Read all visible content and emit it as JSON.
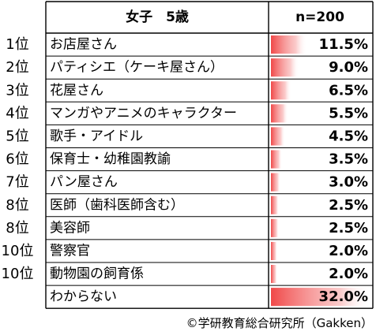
{
  "chart_data": {
    "type": "table",
    "header": {
      "category": "女子　5歳",
      "sample": "n=200"
    },
    "rows": [
      {
        "rank": "1位",
        "label": "お店屋さん",
        "value": 11.5,
        "display": "11.5%"
      },
      {
        "rank": "2位",
        "label": "パティシエ（ケーキ屋さん）",
        "value": 9.0,
        "display": "9.0%"
      },
      {
        "rank": "3位",
        "label": "花屋さん",
        "value": 6.5,
        "display": "6.5%"
      },
      {
        "rank": "4位",
        "label": "マンガやアニメのキャラクター",
        "value": 5.5,
        "display": "5.5%"
      },
      {
        "rank": "5位",
        "label": "歌手・アイドル",
        "value": 4.5,
        "display": "4.5%"
      },
      {
        "rank": "6位",
        "label": "保育士・幼稚園教諭",
        "value": 3.5,
        "display": "3.5%"
      },
      {
        "rank": "7位",
        "label": "パン屋さん",
        "value": 3.0,
        "display": "3.0%"
      },
      {
        "rank": "8位",
        "label": "医師（歯科医師含む）",
        "value": 2.5,
        "display": "2.5%"
      },
      {
        "rank": "8位",
        "label": "美容師",
        "value": 2.5,
        "display": "2.5%"
      },
      {
        "rank": "10位",
        "label": "警察官",
        "value": 2.0,
        "display": "2.0%"
      },
      {
        "rank": "10位",
        "label": "動物園の飼育係",
        "value": 2.0,
        "display": "2.0%"
      },
      {
        "rank": "",
        "label": "わからない",
        "value": 32.0,
        "display": "32.0%"
      }
    ],
    "bar_scale_max": 32.0,
    "bar_color": "#f04848"
  },
  "credit": "©学研教育総合研究所（Gakken）"
}
